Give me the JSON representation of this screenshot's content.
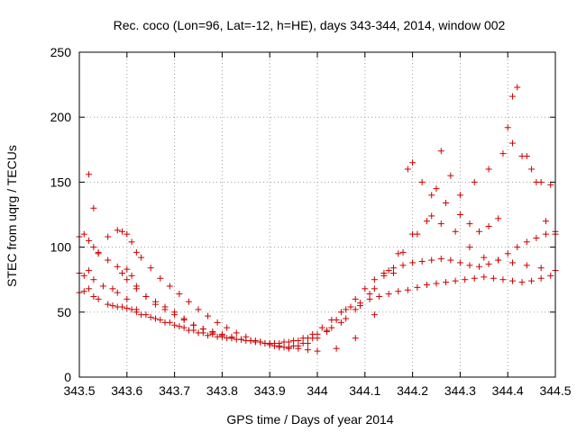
{
  "chart_data": {
    "type": "scatter",
    "title": "Rec. coco (Lon=96, Lat=-12, h=HE), days 343-344, 2014, window 002",
    "xlabel": "GPS time / Days of year 2014",
    "ylabel": "STEC from uqrg / TECUs",
    "xlim": [
      343.5,
      344.5
    ],
    "ylim": [
      0,
      250
    ],
    "x_ticks": [
      "343.5",
      "343.6",
      "343.7",
      "343.8",
      "343.9",
      "344",
      "344.1",
      "344.2",
      "344.3",
      "344.4",
      "344.5"
    ],
    "y_ticks": [
      "0",
      "50",
      "100",
      "150",
      "200",
      "250"
    ],
    "grid": true,
    "marker": "+",
    "colors": {
      "series": "#cc0000"
    },
    "series": [
      {
        "x": [
          343.5,
          343.51,
          343.52,
          343.53,
          343.54,
          343.56,
          343.57,
          343.58,
          343.59,
          343.6,
          343.61,
          343.62,
          343.63,
          343.65,
          343.67,
          343.69,
          343.71,
          343.73,
          343.75,
          343.77,
          343.79,
          343.81,
          343.83,
          343.85,
          343.87,
          343.89,
          343.91,
          343.93,
          343.95,
          343.97,
          343.99,
          344.01,
          344.03,
          344.05,
          344.07,
          344.09,
          344.11,
          344.13,
          344.15,
          344.17,
          344.19,
          344.21,
          344.23,
          344.25,
          344.27,
          344.29,
          344.31,
          344.33,
          344.35,
          344.37,
          344.39,
          344.41,
          344.43,
          344.45,
          344.47,
          344.49
        ],
        "y": [
          65,
          66,
          68,
          62,
          60,
          56,
          55,
          54,
          54,
          53,
          52,
          50,
          48,
          46,
          44,
          42,
          39,
          36,
          34,
          32,
          31,
          30,
          29,
          28,
          27,
          26,
          26,
          27,
          28,
          30,
          33,
          38,
          44,
          50,
          54,
          57,
          60,
          62,
          64,
          66,
          67,
          69,
          71,
          72,
          73,
          74,
          75,
          76,
          77,
          76,
          75,
          74,
          73,
          74,
          76,
          78
        ]
      },
      {
        "x": [
          343.5,
          343.51,
          343.52,
          343.53,
          343.55,
          343.57,
          343.59,
          343.6,
          343.61,
          343.62,
          343.64,
          343.66,
          343.68,
          343.7,
          343.72,
          343.74,
          343.76,
          343.78,
          343.8,
          343.82,
          343.84,
          343.86,
          343.88,
          343.9,
          343.92,
          343.94,
          343.96,
          343.98,
          344.0,
          344.02,
          344.04,
          344.06,
          344.08,
          344.1,
          344.12,
          344.14,
          344.16,
          344.18,
          344.2,
          344.22,
          344.24,
          344.26,
          344.28,
          344.3,
          344.32,
          344.34,
          344.36,
          344.38,
          344.4,
          344.42,
          344.44,
          344.46,
          344.48,
          344.5
        ],
        "y": [
          80,
          78,
          82,
          75,
          70,
          68,
          80,
          83,
          78,
          70,
          62,
          58,
          54,
          50,
          45,
          40,
          37,
          34,
          32,
          30,
          29,
          28,
          27,
          25,
          23,
          22,
          24,
          26,
          30,
          36,
          44,
          52,
          60,
          68,
          75,
          80,
          84,
          86,
          88,
          89,
          90,
          91,
          90,
          88,
          86,
          85,
          87,
          90,
          95,
          100,
          104,
          107,
          110,
          112
        ]
      },
      {
        "x": [
          343.5,
          343.51,
          343.52,
          343.53,
          343.54,
          343.56,
          343.58,
          343.59,
          343.6,
          343.61,
          343.62,
          343.63,
          343.65,
          343.67,
          343.69,
          343.71,
          343.73,
          343.75,
          343.77,
          343.79,
          343.81,
          343.83,
          343.85,
          343.87,
          343.89,
          343.91,
          343.93,
          343.95,
          343.97,
          343.99,
          344.02,
          344.05,
          344.08,
          344.11,
          344.14,
          344.17,
          344.2,
          344.23,
          344.26,
          344.29,
          344.32,
          344.35,
          344.38,
          344.41,
          344.44,
          344.47,
          344.5
        ],
        "y": [
          108,
          110,
          105,
          100,
          96,
          108,
          113,
          112,
          110,
          104,
          96,
          92,
          84,
          76,
          70,
          64,
          58,
          52,
          47,
          42,
          38,
          34,
          31,
          28,
          26,
          24,
          23,
          24,
          26,
          30,
          35,
          42,
          52,
          64,
          78,
          95,
          110,
          120,
          118,
          112,
          100,
          92,
          90,
          88,
          86,
          84,
          82
        ]
      },
      {
        "x": [
          343.52,
          343.53,
          343.54,
          343.56,
          343.58,
          343.6,
          343.62,
          343.64,
          343.66,
          343.68,
          343.7,
          343.72,
          343.74,
          343.76,
          343.78,
          343.8,
          343.82,
          343.84,
          343.86,
          343.88,
          343.9,
          343.92,
          343.94,
          343.96,
          343.98,
          344.0,
          344.03,
          344.06,
          344.09,
          344.12,
          344.15,
          344.18,
          344.21,
          344.24,
          344.27,
          344.3,
          344.33,
          344.36,
          344.39,
          344.41,
          344.43,
          344.45,
          344.47,
          344.49
        ],
        "y": [
          156,
          130,
          95,
          90,
          85,
          75,
          68,
          62,
          56,
          52,
          48,
          44,
          40,
          37,
          35,
          33,
          31,
          29,
          28,
          27,
          26,
          26,
          27,
          28,
          30,
          33,
          38,
          45,
          55,
          68,
          82,
          96,
          110,
          124,
          134,
          140,
          150,
          160,
          172,
          180,
          170,
          160,
          150,
          148
        ]
      },
      {
        "x": [
          343.58,
          343.6,
          343.62,
          343.64,
          343.66,
          343.68,
          343.7,
          343.72,
          343.74,
          343.76,
          343.78,
          343.8,
          343.82,
          343.84,
          343.86,
          343.88,
          343.9,
          343.92,
          343.94,
          343.96,
          343.98,
          344.0,
          344.04,
          344.08,
          344.12,
          344.16,
          344.19,
          344.2,
          344.22,
          344.24,
          344.25,
          344.26,
          344.28,
          344.3,
          344.32,
          344.34,
          344.36,
          344.38,
          344.4,
          344.41,
          344.42,
          344.44,
          344.46,
          344.48,
          344.5
        ],
        "y": [
          65,
          60,
          52,
          48,
          45,
          42,
          40,
          38,
          36,
          34,
          33,
          31,
          30,
          29,
          28,
          27,
          25,
          24,
          23,
          22,
          21,
          20,
          22,
          30,
          48,
          80,
          160,
          165,
          150,
          140,
          145,
          174,
          155,
          125,
          118,
          112,
          116,
          122,
          192,
          216,
          223,
          170,
          150,
          120,
          110
        ]
      }
    ]
  }
}
